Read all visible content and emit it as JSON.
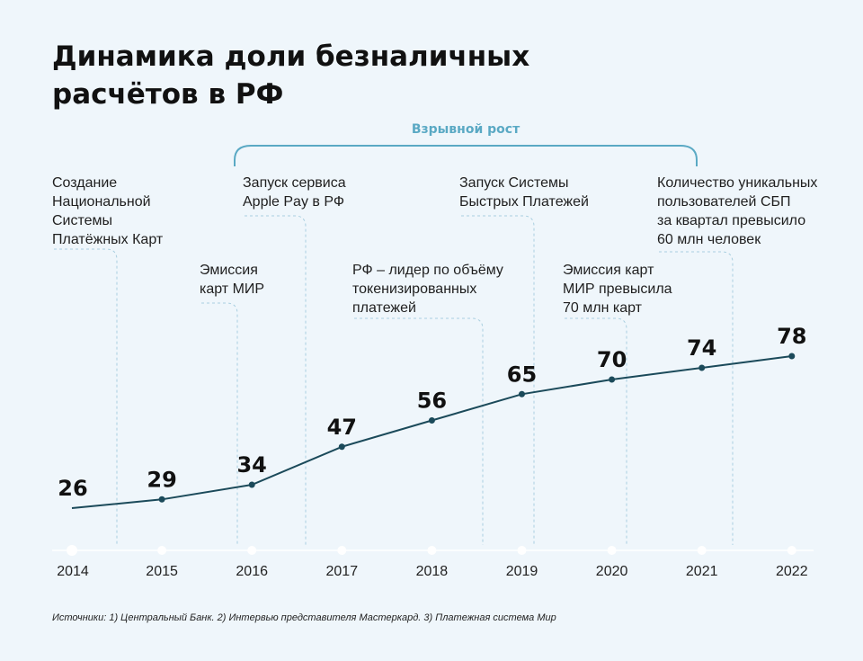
{
  "title_lines": [
    "Динамика доли безналичных",
    "расчётов в РФ"
  ],
  "bracket_label": "Взрывной рост",
  "annotations": [
    {
      "lines": [
        "Создание",
        "Национальной",
        "Системы",
        "Платёжных Карт"
      ]
    },
    {
      "lines": [
        "Эмиссия",
        "карт МИР"
      ]
    },
    {
      "lines": [
        "Запуск сервиса",
        "Apple Pay в РФ"
      ]
    },
    {
      "lines": [
        "РФ – лидер по объёму",
        "токенизированных",
        "платежей"
      ]
    },
    {
      "lines": [
        "Запуск Системы",
        "Быстрых Платежей"
      ]
    },
    {
      "lines": [
        "Эмиссия карт",
        "МИР превысила",
        "70 млн карт"
      ]
    },
    {
      "lines": [
        "Количество уникальных",
        "пользователей СБП",
        "за квартал превысило",
        "60 млн человек"
      ]
    }
  ],
  "source": "Источники: 1) Центральный Банк. 2) Интервью представителя Мастеркард. 3) Платежная система Мир",
  "colors": {
    "line": "#1b4a5a",
    "bracket": "#5aa9c4",
    "dash": "#a9cfe0",
    "axis": "#ffffff"
  },
  "chart_data": {
    "type": "line",
    "categories": [
      "2014",
      "2015",
      "2016",
      "2017",
      "2018",
      "2019",
      "2020",
      "2021",
      "2022"
    ],
    "values": [
      26,
      29,
      34,
      47,
      56,
      65,
      70,
      74,
      78
    ],
    "data_labels": [
      "26",
      "29",
      "34",
      "47",
      "56",
      "65",
      "70",
      "74",
      "78"
    ],
    "ylim": [
      20,
      80
    ],
    "grid": false,
    "legend": "none"
  }
}
